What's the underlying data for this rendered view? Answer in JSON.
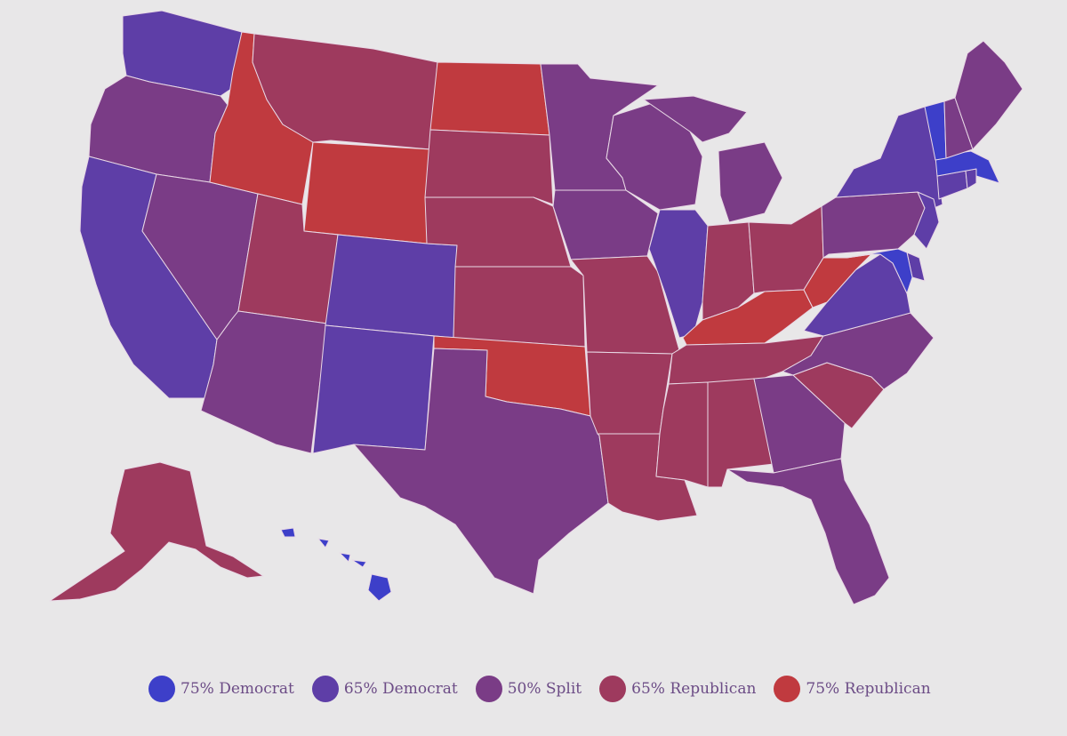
{
  "legend": {
    "items": [
      {
        "label": "75% Democrat",
        "color": "#3d3fc9"
      },
      {
        "label": "65% Democrat",
        "color": "#5e3ea7"
      },
      {
        "label": "50% Split",
        "color": "#7a3c86"
      },
      {
        "label": "65% Republican",
        "color": "#9e3a5e"
      },
      {
        "label": "75% Republican",
        "color": "#c03a3f"
      }
    ]
  },
  "colors": {
    "background": "#e8e7e8",
    "state_border": "#e9d9e6",
    "legend_text": "#6c4c86"
  },
  "states": [
    {
      "id": "WA",
      "category": 1
    },
    {
      "id": "OR",
      "category": 2
    },
    {
      "id": "CA",
      "category": 1
    },
    {
      "id": "NV",
      "category": 2
    },
    {
      "id": "ID",
      "category": 4
    },
    {
      "id": "MT",
      "category": 3
    },
    {
      "id": "WY",
      "category": 4
    },
    {
      "id": "UT",
      "category": 3
    },
    {
      "id": "AZ",
      "category": 2
    },
    {
      "id": "CO",
      "category": 1
    },
    {
      "id": "NM",
      "category": 1
    },
    {
      "id": "ND",
      "category": 4
    },
    {
      "id": "SD",
      "category": 3
    },
    {
      "id": "NE",
      "category": 3
    },
    {
      "id": "KS",
      "category": 3
    },
    {
      "id": "OK",
      "category": 4
    },
    {
      "id": "TX",
      "category": 2
    },
    {
      "id": "MN",
      "category": 2
    },
    {
      "id": "IA",
      "category": 2
    },
    {
      "id": "MO",
      "category": 3
    },
    {
      "id": "AR",
      "category": 3
    },
    {
      "id": "LA",
      "category": 3
    },
    {
      "id": "WI",
      "category": 2
    },
    {
      "id": "IL",
      "category": 1
    },
    {
      "id": "MI",
      "category": 2
    },
    {
      "id": "IN",
      "category": 3
    },
    {
      "id": "OH",
      "category": 3
    },
    {
      "id": "KY",
      "category": 4
    },
    {
      "id": "TN",
      "category": 3
    },
    {
      "id": "MS",
      "category": 3
    },
    {
      "id": "AL",
      "category": 3
    },
    {
      "id": "GA",
      "category": 2
    },
    {
      "id": "FL",
      "category": 2
    },
    {
      "id": "SC",
      "category": 3
    },
    {
      "id": "NC",
      "category": 2
    },
    {
      "id": "VA",
      "category": 1
    },
    {
      "id": "WV",
      "category": 4
    },
    {
      "id": "PA",
      "category": 2
    },
    {
      "id": "NY",
      "category": 1
    },
    {
      "id": "NJ",
      "category": 1
    },
    {
      "id": "DE",
      "category": 1
    },
    {
      "id": "MD",
      "category": 0
    },
    {
      "id": "CT",
      "category": 1
    },
    {
      "id": "RI",
      "category": 1
    },
    {
      "id": "MA",
      "category": 0
    },
    {
      "id": "VT",
      "category": 0
    },
    {
      "id": "NH",
      "category": 2
    },
    {
      "id": "ME",
      "category": 2
    },
    {
      "id": "AK",
      "category": 3
    },
    {
      "id": "HI",
      "category": 0
    }
  ]
}
